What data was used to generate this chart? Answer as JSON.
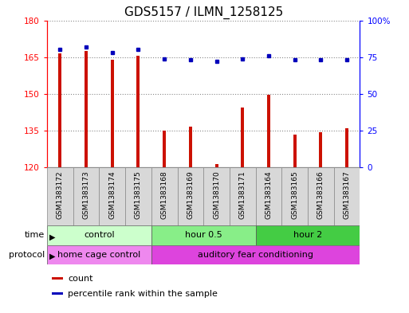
{
  "title": "GDS5157 / ILMN_1258125",
  "samples": [
    "GSM1383172",
    "GSM1383173",
    "GSM1383174",
    "GSM1383175",
    "GSM1383168",
    "GSM1383169",
    "GSM1383170",
    "GSM1383171",
    "GSM1383164",
    "GSM1383165",
    "GSM1383166",
    "GSM1383167"
  ],
  "counts": [
    166.5,
    167.5,
    164.0,
    165.5,
    135.0,
    136.5,
    121.5,
    144.5,
    149.5,
    133.5,
    134.5,
    136.0
  ],
  "percentile_ranks": [
    80,
    82,
    78,
    80,
    74,
    73,
    72,
    74,
    76,
    73,
    73,
    73
  ],
  "ylim_left": [
    120,
    180
  ],
  "ylim_right": [
    0,
    100
  ],
  "yticks_left": [
    120,
    135,
    150,
    165,
    180
  ],
  "yticks_right": [
    0,
    25,
    50,
    75,
    100
  ],
  "bar_color": "#cc1100",
  "dot_color": "#0000bb",
  "grid_color": "#888888",
  "time_groups": [
    {
      "label": "control",
      "start": 0,
      "end": 4,
      "color": "#ccffcc"
    },
    {
      "label": "hour 0.5",
      "start": 4,
      "end": 8,
      "color": "#88ee88"
    },
    {
      "label": "hour 2",
      "start": 8,
      "end": 12,
      "color": "#44cc44"
    }
  ],
  "protocol_groups": [
    {
      "label": "home cage control",
      "start": 0,
      "end": 4,
      "color": "#ee88ee"
    },
    {
      "label": "auditory fear conditioning",
      "start": 4,
      "end": 12,
      "color": "#dd44dd"
    }
  ],
  "legend_items": [
    {
      "color": "#cc1100",
      "label": "count"
    },
    {
      "color": "#0000bb",
      "label": "percentile rank within the sample"
    }
  ],
  "bar_width": 0.12,
  "label_fontsize": 8,
  "tick_fontsize": 7.5,
  "title_fontsize": 11,
  "sample_fontsize": 6.5,
  "row_fontsize": 8,
  "sample_bg": "#d8d8d8",
  "sample_border": "#888888"
}
